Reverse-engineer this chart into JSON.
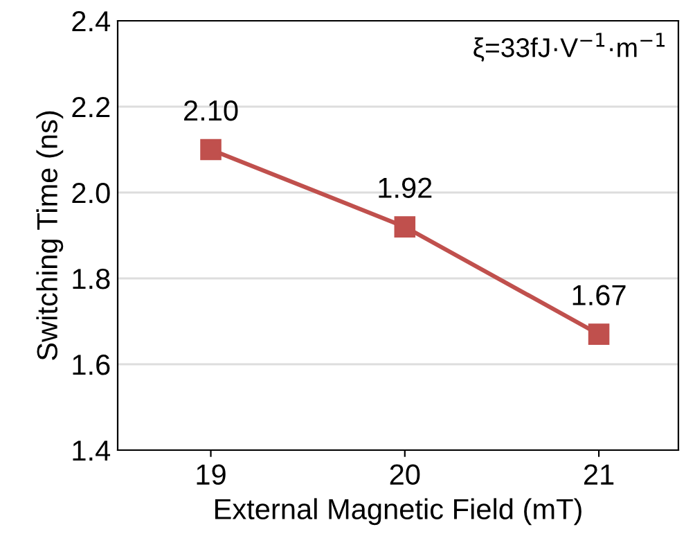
{
  "chart_data": {
    "type": "line",
    "xlabel": "External Magnetic Field (mT)",
    "ylabel": "Switching Time (ns)",
    "x": [
      19,
      20,
      21
    ],
    "series": [
      {
        "color": "#c0504d",
        "values": [
          2.1,
          1.92,
          1.67
        ],
        "value_labels": [
          "2.10",
          "1.92",
          "1.67"
        ]
      }
    ],
    "xlim": [
      18.52,
      21.41
    ],
    "xticks": [
      19,
      20,
      21
    ],
    "ylim": [
      1.4,
      2.4
    ],
    "yticks": [
      {
        "value": 1.4,
        "label": "1.4"
      },
      {
        "value": 1.6,
        "label": "1.6"
      },
      {
        "value": 1.8,
        "label": "1.8"
      },
      {
        "value": 2.0,
        "label": "2.0"
      },
      {
        "value": 2.2,
        "label": "2.2"
      },
      {
        "value": 2.4,
        "label": "2.4"
      }
    ],
    "grid": "y",
    "marker": "square",
    "line_style": "solid",
    "annotations": [
      "ξ=33fJ·V$^{−1}$·m$^{−1}$"
    ]
  }
}
